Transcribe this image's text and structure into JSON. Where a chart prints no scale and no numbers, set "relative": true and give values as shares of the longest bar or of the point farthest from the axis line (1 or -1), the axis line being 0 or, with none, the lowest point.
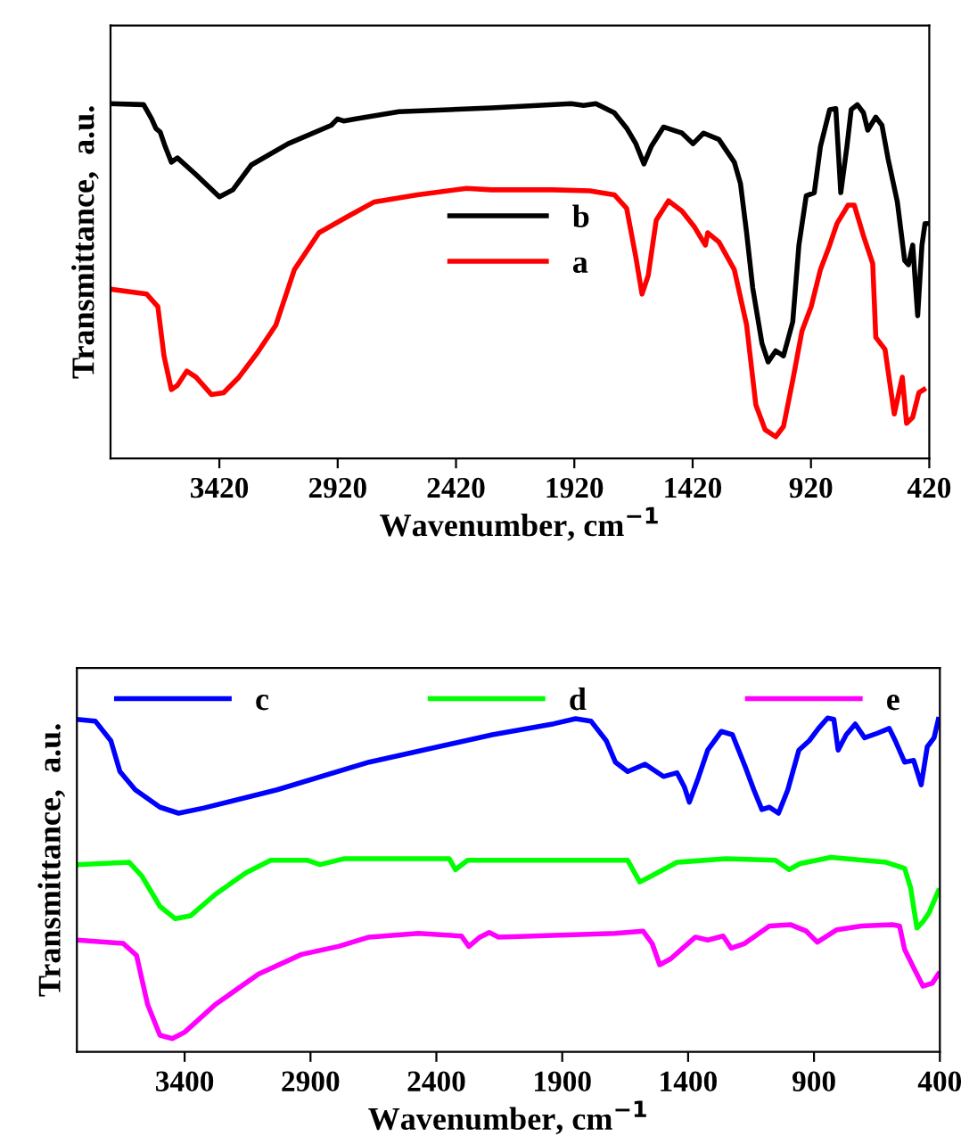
{
  "chart_data": [
    {
      "type": "line",
      "xlabel": "Wavenumber, cm$^{−1}$",
      "ylabel": "Transmittance,  a.u.",
      "xlim": [
        3880,
        420
      ],
      "xticks": [
        3420,
        2920,
        2420,
        1920,
        1420,
        920,
        420
      ],
      "relative": true,
      "tick_labels": "x",
      "legend": "center",
      "series": [
        {
          "name": "b",
          "color": "#000000",
          "x": [
            3880,
            3740,
            3706,
            3688,
            3670,
            3649,
            3623,
            3597,
            3519,
            3420,
            3363,
            3285,
            3129,
            2947,
            2921,
            2895,
            2843,
            2661,
            2271,
            1933,
            1881,
            1829,
            1751,
            1699,
            1660,
            1626,
            1595,
            1543,
            1465,
            1418,
            1374,
            1309,
            1244,
            1218,
            1192,
            1166,
            1127,
            1101,
            1069,
            1036,
            997,
            971,
            940,
            906,
            880,
            841,
            815,
            794,
            768,
            750,
            724,
            698,
            680,
            646,
            620,
            594,
            555,
            524,
            508,
            490,
            469,
            451,
            438,
            425
          ],
          "values": [
            1.0,
            0.997,
            0.957,
            0.93,
            0.92,
            0.879,
            0.835,
            0.847,
            0.8,
            0.737,
            0.757,
            0.827,
            0.887,
            0.939,
            0.957,
            0.951,
            0.957,
            0.977,
            0.988,
            1.0,
            0.995,
            1.0,
            0.974,
            0.931,
            0.887,
            0.83,
            0.879,
            0.934,
            0.917,
            0.887,
            0.917,
            0.899,
            0.835,
            0.775,
            0.636,
            0.48,
            0.324,
            0.272,
            0.303,
            0.289,
            0.385,
            0.601,
            0.74,
            0.749,
            0.879,
            0.983,
            0.986,
            0.749,
            0.879,
            0.983,
            0.997,
            0.974,
            0.925,
            0.962,
            0.939,
            0.844,
            0.723,
            0.558,
            0.546,
            0.601,
            0.402,
            0.601,
            0.662,
            0.662
          ]
        },
        {
          "name": "a",
          "color": "#ff0000",
          "x": [
            3880,
            3727,
            3680,
            3654,
            3623,
            3597,
            3558,
            3519,
            3454,
            3402,
            3337,
            3259,
            3181,
            3103,
            2999,
            2869,
            2765,
            2583,
            2375,
            2271,
            2011,
            1855,
            1751,
            1699,
            1660,
            1634,
            1608,
            1574,
            1522,
            1465,
            1413,
            1366,
            1356,
            1309,
            1244,
            1192,
            1153,
            1114,
            1069,
            1036,
            997,
            958,
            919,
            880,
            841,
            810,
            763,
            737,
            698,
            659,
            646,
            607,
            568,
            534,
            516,
            490,
            464,
            443
          ],
          "values": [
            0.477,
            0.463,
            0.428,
            0.289,
            0.194,
            0.206,
            0.246,
            0.229,
            0.18,
            0.185,
            0.229,
            0.298,
            0.376,
            0.532,
            0.636,
            0.685,
            0.723,
            0.743,
            0.761,
            0.757,
            0.757,
            0.754,
            0.743,
            0.705,
            0.567,
            0.463,
            0.515,
            0.671,
            0.726,
            0.697,
            0.653,
            0.601,
            0.636,
            0.61,
            0.532,
            0.376,
            0.151,
            0.081,
            0.061,
            0.09,
            0.22,
            0.359,
            0.428,
            0.532,
            0.601,
            0.662,
            0.714,
            0.714,
            0.627,
            0.549,
            0.341,
            0.307,
            0.125,
            0.229,
            0.099,
            0.116,
            0.185,
            0.194
          ]
        }
      ]
    },
    {
      "type": "line",
      "xlabel": "Wavenumber, cm$^{−1}$",
      "ylabel": "Transmittance,  a.u.",
      "xlim": [
        3828,
        400
      ],
      "xticks": [
        3400,
        2900,
        2400,
        1900,
        1400,
        900,
        400
      ],
      "relative": true,
      "tick_labels": "x",
      "legend": "top",
      "series": [
        {
          "name": "c",
          "color": "#0000ff",
          "x": [
            3828,
            3755,
            3693,
            3657,
            3596,
            3498,
            3424,
            3327,
            3033,
            2667,
            2178,
            1933,
            1847,
            1786,
            1725,
            1689,
            1640,
            1571,
            1498,
            1444,
            1415,
            1395,
            1359,
            1322,
            1268,
            1224,
            1175,
            1139,
            1107,
            1077,
            1041,
            1004,
            960,
            919,
            882,
            846,
            821,
            804,
            772,
            736,
            699,
            650,
            601,
            577,
            540,
            504,
            474,
            450,
            423,
            406
          ],
          "values": [
            0.996,
            0.991,
            0.932,
            0.84,
            0.785,
            0.733,
            0.715,
            0.73,
            0.785,
            0.868,
            0.95,
            0.983,
            0.998,
            0.991,
            0.932,
            0.868,
            0.84,
            0.862,
            0.825,
            0.836,
            0.794,
            0.748,
            0.822,
            0.904,
            0.96,
            0.95,
            0.858,
            0.785,
            0.726,
            0.733,
            0.715,
            0.785,
            0.904,
            0.932,
            0.969,
            1.0,
            0.996,
            0.904,
            0.95,
            0.982,
            0.941,
            0.954,
            0.969,
            0.932,
            0.868,
            0.873,
            0.8,
            0.914,
            0.941,
            0.996
          ]
        },
        {
          "name": "d",
          "color": "#00ff00",
          "x": [
            3828,
            3620,
            3571,
            3498,
            3437,
            3376,
            3278,
            3156,
            3058,
            2911,
            2862,
            2765,
            2349,
            2324,
            2276,
            1640,
            1592,
            1543,
            1444,
            1249,
            1053,
            999,
            955,
            833,
            613,
            540,
            516,
            491,
            467,
            443,
            406
          ],
          "values": [
            0.561,
            0.568,
            0.528,
            0.436,
            0.399,
            0.408,
            0.472,
            0.537,
            0.574,
            0.574,
            0.561,
            0.579,
            0.579,
            0.546,
            0.574,
            0.574,
            0.509,
            0.528,
            0.568,
            0.579,
            0.574,
            0.546,
            0.564,
            0.583,
            0.568,
            0.55,
            0.491,
            0.371,
            0.39,
            0.417,
            0.482
          ]
        },
        {
          "name": "e",
          "color": "#ff00ff",
          "x": [
            3828,
            3644,
            3591,
            3547,
            3498,
            3449,
            3400,
            3278,
            3107,
            2936,
            2789,
            2667,
            2471,
            2300,
            2271,
            2227,
            2190,
            2153,
            1689,
            1579,
            1543,
            1513,
            1469,
            1371,
            1322,
            1261,
            1229,
            1175,
            1077,
            992,
            931,
            887,
            809,
            711,
            589,
            560,
            540,
            504,
            467,
            430,
            406
          ],
          "values": [
            0.335,
            0.325,
            0.289,
            0.142,
            0.05,
            0.04,
            0.059,
            0.142,
            0.233,
            0.292,
            0.316,
            0.344,
            0.355,
            0.347,
            0.316,
            0.344,
            0.358,
            0.344,
            0.355,
            0.362,
            0.325,
            0.261,
            0.279,
            0.344,
            0.335,
            0.347,
            0.311,
            0.325,
            0.377,
            0.381,
            0.362,
            0.329,
            0.366,
            0.377,
            0.381,
            0.377,
            0.307,
            0.252,
            0.197,
            0.206,
            0.233
          ]
        }
      ]
    }
  ]
}
